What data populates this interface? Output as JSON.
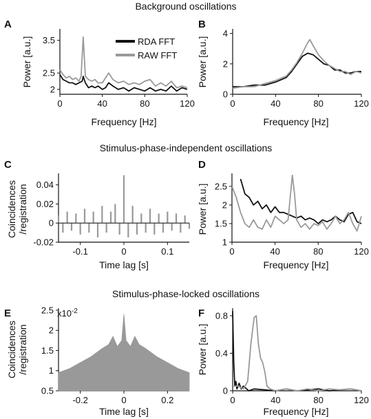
{
  "sections": [
    {
      "title": "Background oscillations"
    },
    {
      "title": "Stimulus-phase-independent oscillations"
    },
    {
      "title": "Stimulus-phase-locked oscillations"
    }
  ],
  "legend": [
    {
      "label": "RDA FFT",
      "color": "#111111"
    },
    {
      "label": "RAW FFT",
      "color": "#999999"
    }
  ],
  "chart_data": [
    {
      "panel": "A",
      "type": "line",
      "xlabel": "Frequency [Hz]",
      "ylabel": "Power [a.u.]",
      "xlim": [
        0,
        120
      ],
      "ylim": [
        1.85,
        3.85
      ],
      "xticks": [
        0,
        40,
        80,
        120
      ],
      "yticks": [
        2,
        2.5,
        3.5
      ],
      "legend_position": "top-right",
      "series": [
        {
          "name": "RDA FFT",
          "color": "#111111",
          "x": [
            0,
            3,
            6,
            9,
            12,
            15,
            18,
            21,
            22,
            24,
            27,
            30,
            33,
            36,
            40,
            43,
            46,
            50,
            55,
            60,
            65,
            70,
            75,
            80,
            85,
            90,
            95,
            100,
            105,
            110,
            115,
            120
          ],
          "y": [
            2.45,
            2.3,
            2.25,
            2.2,
            2.2,
            2.15,
            2.2,
            2.25,
            2.4,
            2.2,
            2.05,
            2.1,
            2.05,
            2.1,
            2.0,
            2.05,
            2.2,
            2.1,
            2.0,
            2.05,
            1.95,
            2.05,
            2.0,
            1.95,
            2.05,
            1.95,
            2.0,
            1.95,
            2.1,
            1.95,
            2.05,
            2.0
          ]
        },
        {
          "name": "RAW FFT",
          "color": "#999999",
          "x": [
            0,
            3,
            6,
            9,
            12,
            15,
            18,
            20,
            22,
            24,
            27,
            30,
            33,
            36,
            40,
            43,
            46,
            50,
            55,
            60,
            65,
            70,
            75,
            80,
            85,
            90,
            95,
            100,
            105,
            110,
            115,
            120
          ],
          "y": [
            2.6,
            2.45,
            2.35,
            2.4,
            2.3,
            2.35,
            2.25,
            2.4,
            3.6,
            2.4,
            2.3,
            2.25,
            2.3,
            2.2,
            2.2,
            2.35,
            2.5,
            2.3,
            2.2,
            2.25,
            2.15,
            2.2,
            2.15,
            2.25,
            2.3,
            2.1,
            2.2,
            2.1,
            2.25,
            2.05,
            2.1,
            2.05
          ]
        }
      ]
    },
    {
      "panel": "B",
      "type": "line",
      "xlabel": "Frequency [Hz]",
      "ylabel": "Power [a.u.]",
      "xlim": [
        0,
        120
      ],
      "ylim": [
        0,
        4.3
      ],
      "xticks": [
        0,
        40,
        80,
        120
      ],
      "yticks": [
        0,
        2,
        4
      ],
      "series": [
        {
          "name": "RDA FFT",
          "color": "#111111",
          "x": [
            0,
            10,
            20,
            30,
            40,
            50,
            55,
            60,
            65,
            70,
            75,
            80,
            85,
            90,
            95,
            100,
            105,
            110,
            115,
            120
          ],
          "y": [
            0.5,
            0.5,
            0.6,
            0.6,
            0.8,
            1.1,
            1.5,
            2.0,
            2.5,
            2.7,
            2.6,
            2.3,
            2.0,
            1.9,
            1.6,
            1.6,
            1.4,
            1.4,
            1.5,
            1.5
          ]
        },
        {
          "name": "RAW FFT",
          "color": "#999999",
          "x": [
            0,
            10,
            20,
            30,
            40,
            50,
            55,
            60,
            65,
            70,
            72,
            75,
            80,
            85,
            90,
            95,
            100,
            105,
            110,
            115,
            120
          ],
          "y": [
            0.4,
            0.5,
            0.5,
            0.7,
            0.9,
            1.2,
            1.6,
            2.1,
            2.7,
            3.4,
            3.6,
            3.2,
            2.6,
            2.2,
            1.9,
            1.7,
            1.5,
            1.5,
            1.3,
            1.5,
            1.4
          ]
        }
      ]
    },
    {
      "panel": "C",
      "type": "bar",
      "xlabel": "Time lag [s]",
      "ylabel": "Coincidences /registration",
      "xlim": [
        -0.15,
        0.15
      ],
      "ylim": [
        -0.02,
        0.052
      ],
      "xticks": [
        -0.1,
        0,
        0.1
      ],
      "yticks": [
        -0.02,
        0,
        0.02,
        0.04
      ],
      "description_value_range": {
        "center_lag": 0,
        "center_peak": 0.05,
        "typical_amplitude": 0.015
      },
      "series": [
        {
          "name": "",
          "color": "#999999",
          "x": [
            -0.15,
            -0.14,
            -0.13,
            -0.12,
            -0.11,
            -0.1,
            -0.09,
            -0.08,
            -0.07,
            -0.06,
            -0.05,
            -0.04,
            -0.03,
            -0.02,
            -0.01,
            0,
            0.01,
            0.02,
            0.03,
            0.04,
            0.05,
            0.06,
            0.07,
            0.08,
            0.09,
            0.1,
            0.11,
            0.12,
            0.13,
            0.14,
            0.15
          ],
          "y": [
            0.008,
            -0.01,
            0.012,
            -0.008,
            0.01,
            -0.012,
            0.015,
            -0.01,
            0.012,
            -0.015,
            0.018,
            -0.01,
            0.012,
            0.02,
            -0.012,
            0.05,
            -0.015,
            0.018,
            -0.012,
            0.01,
            -0.01,
            0.015,
            -0.012,
            0.01,
            -0.01,
            0.012,
            -0.008,
            0.01,
            -0.01,
            0.008,
            -0.006
          ]
        }
      ]
    },
    {
      "panel": "D",
      "type": "line",
      "xlabel": "Frequency [Hz]",
      "ylabel": "Power [a.u.]",
      "xlim": [
        0,
        120
      ],
      "ylim": [
        1,
        2.85
      ],
      "xticks": [
        0,
        40,
        80,
        120
      ],
      "yticks": [
        1,
        1.5,
        2,
        2.5
      ],
      "series": [
        {
          "name": "RDA FFT",
          "color": "#111111",
          "x": [
            8,
            12,
            16,
            20,
            24,
            28,
            32,
            36,
            40,
            44,
            48,
            52,
            56,
            60,
            64,
            68,
            72,
            76,
            80,
            84,
            88,
            92,
            96,
            100,
            104,
            108,
            112,
            116,
            120
          ],
          "y": [
            2.7,
            2.3,
            2.2,
            2.0,
            2.1,
            1.9,
            2.0,
            1.8,
            1.95,
            1.8,
            1.8,
            1.75,
            1.7,
            1.65,
            1.7,
            1.6,
            1.65,
            1.6,
            1.5,
            1.6,
            1.55,
            1.6,
            1.7,
            1.6,
            1.55,
            1.75,
            1.8,
            1.55,
            1.5
          ]
        },
        {
          "name": "RAW FFT",
          "color": "#999999",
          "x": [
            0,
            4,
            8,
            12,
            16,
            20,
            24,
            28,
            32,
            36,
            40,
            44,
            48,
            52,
            54,
            56,
            58,
            60,
            64,
            68,
            72,
            76,
            80,
            84,
            88,
            92,
            96,
            100,
            104,
            108,
            112,
            116,
            120
          ],
          "y": [
            2.5,
            2.2,
            1.8,
            1.5,
            1.4,
            1.6,
            1.4,
            1.35,
            1.6,
            1.4,
            1.7,
            1.6,
            1.5,
            1.6,
            2.2,
            2.8,
            2.3,
            1.6,
            1.4,
            1.5,
            1.35,
            1.5,
            1.45,
            1.55,
            1.35,
            1.5,
            1.7,
            1.5,
            1.6,
            1.8,
            1.5,
            1.3,
            1.7
          ]
        }
      ]
    },
    {
      "panel": "E",
      "type": "area",
      "xlabel": "Time lag [s]",
      "ylabel": "Coincidences /registration",
      "y_multiplier": "x10-2",
      "xlim": [
        -0.3,
        0.3
      ],
      "ylim": [
        0.5,
        2.55
      ],
      "xticks": [
        -0.2,
        0,
        0.2
      ],
      "yticks": [
        0.5,
        1,
        1.5,
        2,
        2.5
      ],
      "series": [
        {
          "name": "",
          "color": "#999999",
          "x": [
            -0.3,
            -0.25,
            -0.2,
            -0.15,
            -0.1,
            -0.07,
            -0.05,
            -0.03,
            -0.01,
            0,
            0.01,
            0.03,
            0.05,
            0.07,
            0.1,
            0.15,
            0.2,
            0.25,
            0.3
          ],
          "y": [
            0.95,
            1.05,
            1.2,
            1.35,
            1.55,
            1.65,
            1.85,
            1.6,
            1.75,
            2.4,
            1.75,
            1.6,
            1.85,
            1.65,
            1.55,
            1.35,
            1.2,
            1.05,
            0.95
          ]
        }
      ]
    },
    {
      "panel": "F",
      "type": "line",
      "xlabel": "Frequency [Hz]",
      "ylabel": "Power [a.u.]",
      "xlim": [
        0,
        120
      ],
      "ylim": [
        0,
        0.88
      ],
      "xticks": [
        0,
        40,
        80,
        120
      ],
      "yticks": [
        0,
        0.4,
        0.8
      ],
      "series": [
        {
          "name": "RDA FFT",
          "color": "#111111",
          "x": [
            0,
            1,
            2,
            3,
            4,
            6,
            8,
            10,
            15,
            20,
            30,
            40,
            50,
            60,
            70,
            80,
            90,
            100,
            110,
            120
          ],
          "y": [
            0.85,
            0.3,
            0.05,
            0.1,
            0.02,
            0.08,
            0.02,
            0.05,
            0.0,
            0.02,
            0.01,
            0.0,
            0.02,
            0.0,
            0.01,
            0.02,
            0.0,
            0.01,
            0.02,
            0.0
          ]
        },
        {
          "name": "RAW FFT",
          "color": "#999999",
          "x": [
            0,
            5,
            10,
            14,
            17,
            20,
            22,
            24,
            26,
            28,
            30,
            32,
            35,
            40,
            50,
            60,
            70,
            80,
            90,
            100,
            110,
            120
          ],
          "y": [
            0.05,
            0.05,
            0.02,
            0.1,
            0.5,
            0.78,
            0.8,
            0.5,
            0.35,
            0.3,
            0.2,
            0.05,
            0.02,
            0.0,
            0.02,
            0.0,
            0.02,
            0.0,
            0.02,
            0.01,
            0.02,
            0.0
          ]
        }
      ]
    }
  ]
}
